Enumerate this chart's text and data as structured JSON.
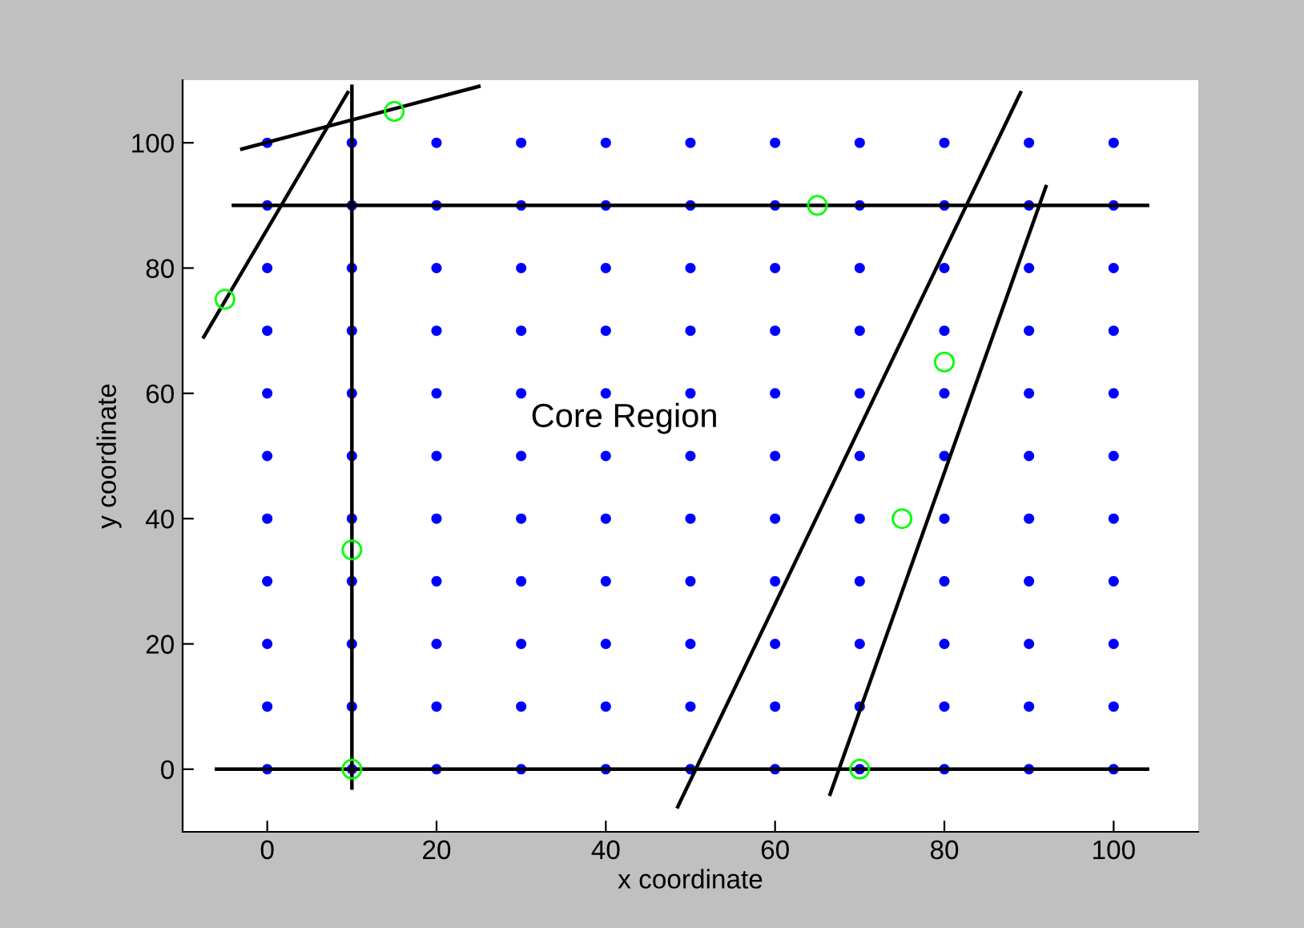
{
  "chart_data": {
    "type": "scatter",
    "xlabel": "x coordinate",
    "ylabel": "y coordinate",
    "xlim": [
      -10,
      110
    ],
    "ylim": [
      -10,
      110
    ],
    "xticks": [
      0,
      20,
      40,
      60,
      80,
      100
    ],
    "yticks": [
      0,
      20,
      40,
      60,
      80,
      100
    ],
    "grid": false,
    "legend": false,
    "annotations": [
      "Core Region"
    ],
    "series": [
      {
        "marker": "circle",
        "color": "#0000ff",
        "x": [
          0,
          10,
          20,
          30,
          40,
          50,
          60,
          70,
          80,
          90,
          100,
          0,
          10,
          20,
          30,
          40,
          50,
          60,
          70,
          80,
          90,
          100,
          0,
          10,
          20,
          30,
          40,
          50,
          60,
          70,
          80,
          90,
          100,
          0,
          10,
          20,
          30,
          40,
          50,
          60,
          70,
          80,
          90,
          100,
          0,
          10,
          20,
          30,
          40,
          50,
          60,
          70,
          80,
          90,
          100,
          0,
          10,
          20,
          30,
          40,
          50,
          60,
          70,
          80,
          90,
          100,
          0,
          10,
          20,
          30,
          40,
          50,
          60,
          70,
          80,
          90,
          100,
          0,
          10,
          20,
          30,
          40,
          50,
          60,
          70,
          80,
          90,
          100,
          0,
          10,
          20,
          30,
          40,
          50,
          60,
          70,
          80,
          90,
          100,
          0,
          10,
          20,
          30,
          40,
          50,
          60,
          70,
          80,
          90,
          100,
          0,
          10,
          20,
          30,
          40,
          50,
          60,
          70,
          80,
          90,
          100
        ],
        "values": [
          0,
          0,
          0,
          0,
          0,
          0,
          0,
          0,
          0,
          0,
          0,
          10,
          10,
          10,
          10,
          10,
          10,
          10,
          10,
          10,
          10,
          10,
          20,
          20,
          20,
          20,
          20,
          20,
          20,
          20,
          20,
          20,
          20,
          30,
          30,
          30,
          30,
          30,
          30,
          30,
          30,
          30,
          30,
          30,
          40,
          40,
          40,
          40,
          40,
          40,
          40,
          40,
          40,
          40,
          40,
          50,
          50,
          50,
          50,
          50,
          50,
          50,
          50,
          50,
          50,
          50,
          60,
          60,
          60,
          60,
          60,
          60,
          60,
          60,
          60,
          60,
          60,
          70,
          70,
          70,
          70,
          70,
          70,
          70,
          70,
          70,
          70,
          70,
          80,
          80,
          80,
          80,
          80,
          80,
          80,
          80,
          80,
          80,
          80,
          90,
          90,
          90,
          90,
          90,
          90,
          90,
          90,
          90,
          90,
          90,
          100,
          100,
          100,
          100,
          100,
          100,
          100,
          100,
          100,
          100,
          100
        ]
      },
      {
        "type": "line",
        "marker": "none",
        "color": "#000000",
        "x": [
          -4,
          104
        ],
        "values": [
          90,
          90
        ]
      },
      {
        "type": "line",
        "marker": "none",
        "color": "#000000",
        "x": [
          -6,
          104
        ],
        "values": [
          0,
          0
        ]
      },
      {
        "type": "line",
        "marker": "none",
        "color": "#000000",
        "x": [
          10,
          10
        ],
        "values": [
          -3,
          109
        ]
      },
      {
        "type": "line",
        "marker": "none",
        "color": "#000000",
        "x": [
          -3,
          25
        ],
        "values": [
          99,
          109
        ]
      },
      {
        "type": "line",
        "marker": "none",
        "color": "#000000",
        "x": [
          -7.5,
          9.5
        ],
        "values": [
          69,
          108
        ]
      },
      {
        "type": "line",
        "marker": "none",
        "color": "#000000",
        "x": [
          48.5,
          89
        ],
        "values": [
          -6,
          108
        ]
      },
      {
        "type": "line",
        "marker": "none",
        "color": "#000000",
        "x": [
          66.5,
          92
        ],
        "values": [
          -4,
          93
        ]
      },
      {
        "marker": "circle",
        "color": "#00ff00",
        "x": [
          15,
          -5,
          65,
          80,
          75,
          10,
          10,
          70
        ],
        "values": [
          105,
          75,
          90,
          65,
          40,
          35,
          0,
          0
        ]
      }
    ]
  }
}
